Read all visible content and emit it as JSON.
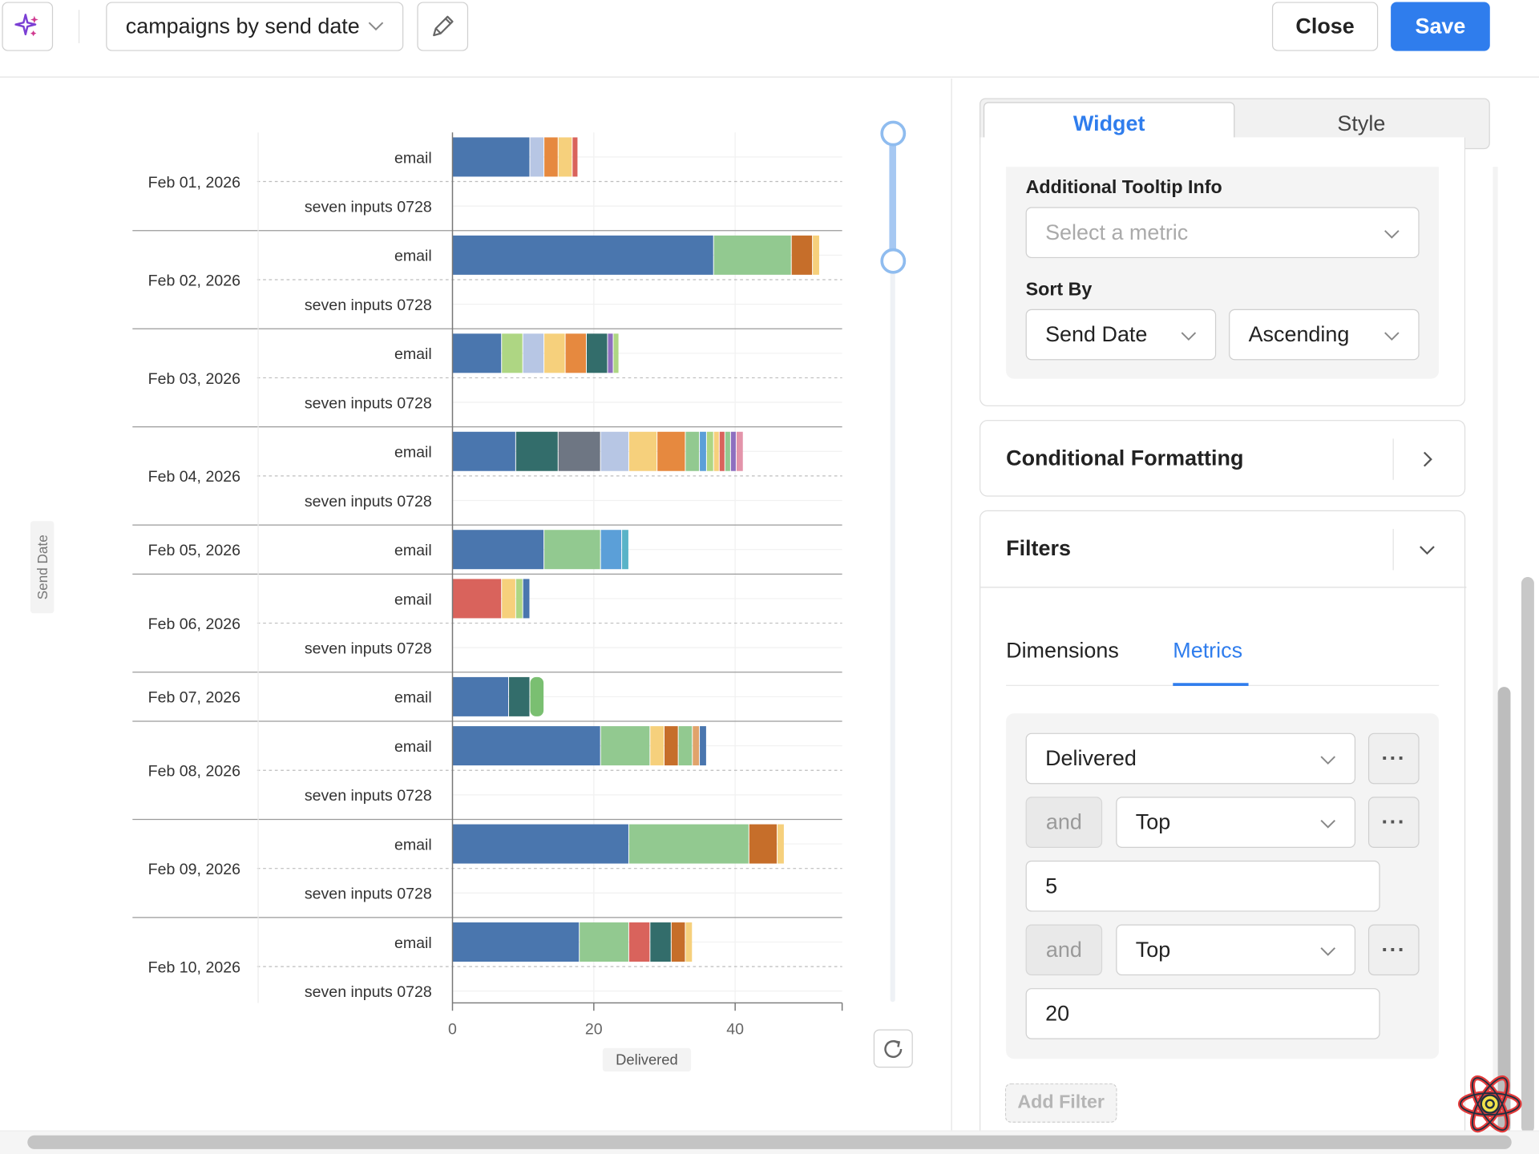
{
  "header": {
    "title": "campaigns by send date",
    "close_label": "Close",
    "save_label": "Save",
    "accent_color": "#2f7ded"
  },
  "chart_data": {
    "type": "bar",
    "orientation": "horizontal",
    "stacked": true,
    "ylabel": "Send Date",
    "xlabel": "Delivered",
    "xticks": [
      0,
      20,
      40
    ],
    "xlim": [
      0,
      55
    ],
    "grid": true,
    "colors": [
      "#4a76ae",
      "#b7c6e4",
      "#e6893f",
      "#f6d07c",
      "#d9635c",
      "#92c990",
      "#336d6b",
      "#6e7683",
      "#c66e2a",
      "#5b9fd8",
      "#7abf71",
      "#e0a36b",
      "#e394aa",
      "#8e6fbf",
      "#aed683",
      "#59b3c8",
      "#8d4f9e"
    ],
    "groups": [
      {
        "date": "Feb 01, 2026",
        "rows": [
          {
            "label": "email",
            "segments": [
              [
                11,
                0
              ],
              [
                2,
                1
              ],
              [
                2,
                2
              ],
              [
                2,
                3
              ],
              [
                0.8,
                4
              ]
            ]
          },
          {
            "label": "seven inputs 0728",
            "segments": []
          }
        ]
      },
      {
        "date": "Feb 02, 2026",
        "rows": [
          {
            "label": "email",
            "segments": [
              [
                37,
                0
              ],
              [
                11,
                5
              ],
              [
                3,
                8
              ],
              [
                1,
                3
              ]
            ]
          },
          {
            "label": "seven inputs 0728",
            "segments": []
          }
        ]
      },
      {
        "date": "Feb 03, 2026",
        "rows": [
          {
            "label": "email",
            "segments": [
              [
                7,
                0
              ],
              [
                3,
                14
              ],
              [
                3,
                1
              ],
              [
                3,
                3
              ],
              [
                3,
                2
              ],
              [
                3,
                6
              ],
              [
                0.8,
                13
              ],
              [
                0.8,
                14
              ]
            ]
          },
          {
            "label": "seven inputs 0728",
            "segments": []
          }
        ]
      },
      {
        "date": "Feb 04, 2026",
        "rows": [
          {
            "label": "email",
            "segments": [
              [
                9,
                0
              ],
              [
                6,
                6
              ],
              [
                6,
                7
              ],
              [
                4,
                1
              ],
              [
                4,
                3
              ],
              [
                4,
                2
              ],
              [
                2,
                5
              ],
              [
                1,
                9
              ],
              [
                1,
                14
              ],
              [
                0.8,
                3
              ],
              [
                0.8,
                4
              ],
              [
                0.8,
                5
              ],
              [
                0.8,
                13
              ],
              [
                1,
                12
              ]
            ]
          },
          {
            "label": "seven inputs 0728",
            "segments": []
          }
        ]
      },
      {
        "date": "Feb 05, 2026",
        "rows": [
          {
            "label": "email",
            "segments": [
              [
                13,
                0
              ],
              [
                8,
                5
              ],
              [
                3,
                9
              ],
              [
                1,
                15
              ]
            ]
          }
        ]
      },
      {
        "date": "Feb 06, 2026",
        "rows": [
          {
            "label": "email",
            "segments": [
              [
                7,
                4
              ],
              [
                2,
                3
              ],
              [
                1,
                14
              ],
              [
                1,
                0
              ]
            ]
          },
          {
            "label": "seven inputs 0728",
            "segments": []
          }
        ]
      },
      {
        "date": "Feb 07, 2026",
        "rows": [
          {
            "label": "email",
            "segments": [
              [
                8,
                0
              ],
              [
                3,
                6
              ],
              [
                2,
                10
              ]
            ]
          }
        ]
      },
      {
        "date": "Feb 08, 2026",
        "rows": [
          {
            "label": "email",
            "segments": [
              [
                21,
                0
              ],
              [
                7,
                5
              ],
              [
                2,
                3
              ],
              [
                2,
                8
              ],
              [
                2,
                5
              ],
              [
                1,
                11
              ],
              [
                1,
                0
              ]
            ]
          },
          {
            "label": "seven inputs 0728",
            "segments": []
          }
        ]
      },
      {
        "date": "Feb 09, 2026",
        "rows": [
          {
            "label": "email",
            "segments": [
              [
                25,
                0
              ],
              [
                17,
                5
              ],
              [
                4,
                8
              ],
              [
                1,
                3
              ]
            ]
          },
          {
            "label": "seven inputs 0728",
            "segments": []
          }
        ]
      },
      {
        "date": "Feb 10, 2026",
        "rows": [
          {
            "label": "email",
            "segments": [
              [
                18,
                0
              ],
              [
                7,
                5
              ],
              [
                3,
                4
              ],
              [
                3,
                6
              ],
              [
                2,
                8
              ],
              [
                1,
                3
              ]
            ]
          },
          {
            "label": "seven inputs 0728",
            "segments": []
          }
        ]
      }
    ]
  },
  "panel": {
    "tabs": {
      "widget": "Widget",
      "style": "Style"
    },
    "tooltip": {
      "label": "Additional Tooltip Info",
      "placeholder": "Select a metric"
    },
    "sort": {
      "label": "Sort By",
      "field": "Send Date",
      "order": "Ascending"
    },
    "conditional_formatting": {
      "title": "Conditional Formatting"
    },
    "filters": {
      "title": "Filters",
      "tab_dimensions": "Dimensions",
      "tab_metrics": "Metrics",
      "metric": "Delivered",
      "rule1": {
        "joiner": "and",
        "op": "Top",
        "value": "5"
      },
      "rule2": {
        "joiner": "and",
        "op": "Top",
        "value": "20"
      },
      "add_filter": "Add Filter"
    }
  }
}
